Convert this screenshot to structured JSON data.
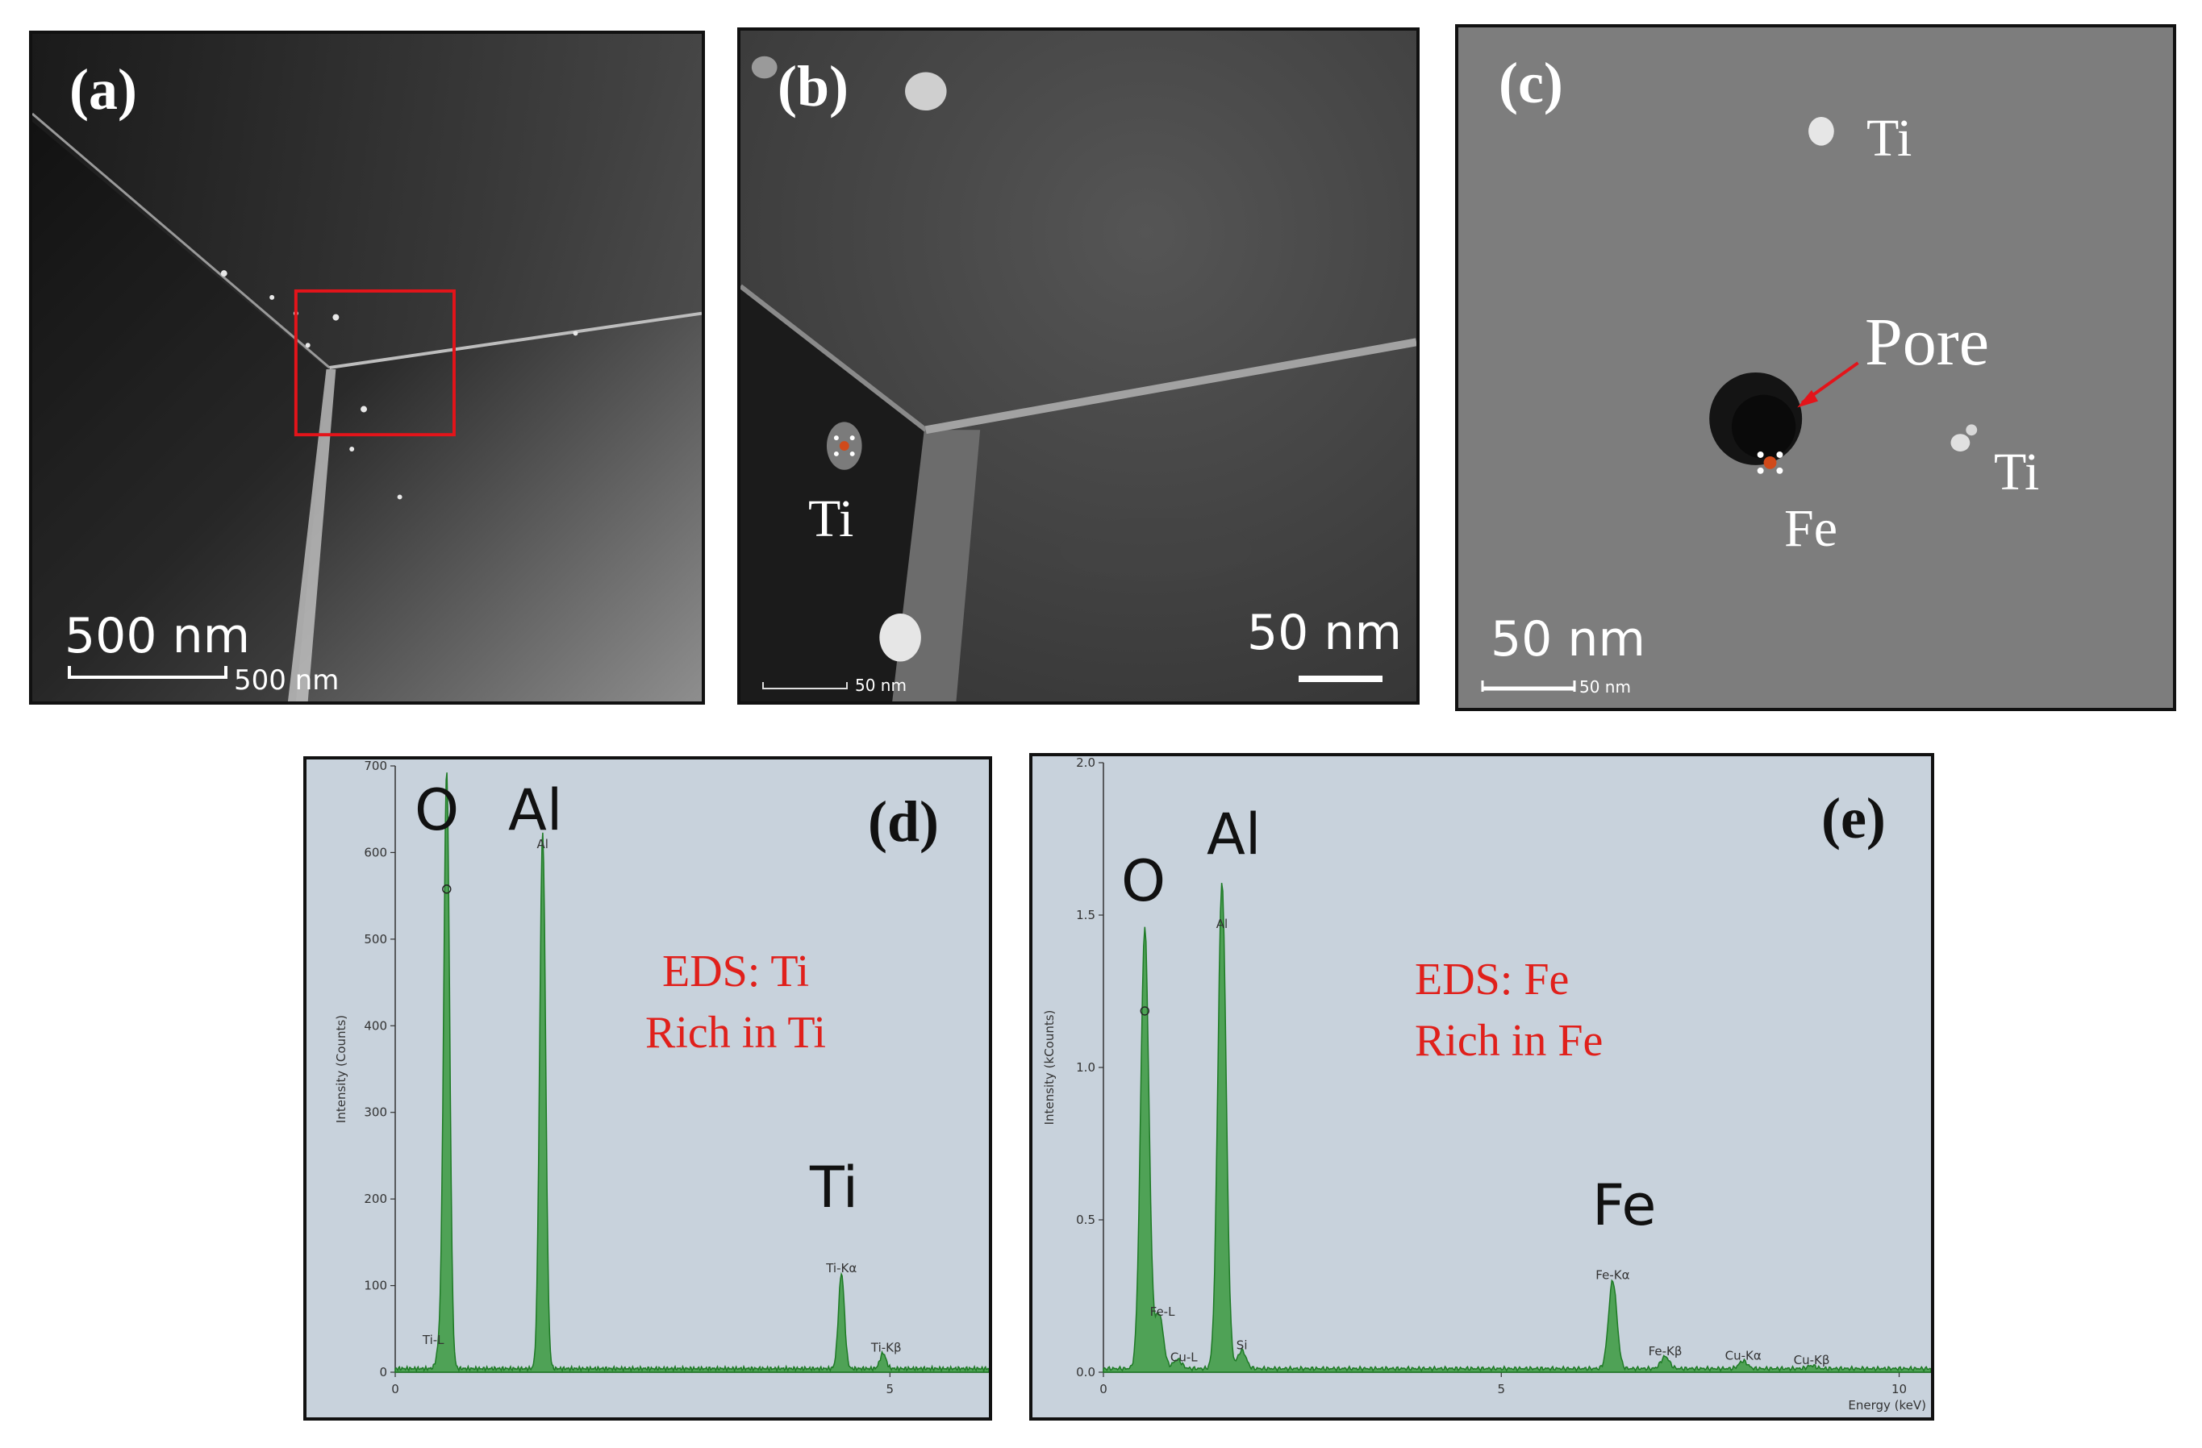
{
  "panels": {
    "a": {
      "label": "(a)",
      "scalebar_big": "500 nm",
      "scalebar_small": "500 nm"
    },
    "b": {
      "label": "(b)",
      "particle_label": "Ti",
      "scalebar_big": "50 nm",
      "scalebar_small": "50 nm"
    },
    "c": {
      "label": "(c)",
      "labels": {
        "ti_top": "Ti",
        "pore": "Pore",
        "ti_right": "Ti",
        "fe": "Fe"
      },
      "scalebar_big": "50 nm",
      "scalebar_small": "50 nm"
    },
    "d": {
      "label": "(d)",
      "note_line1": "EDS: Ti",
      "note_line2": "Rich in Ti",
      "peak_labels": {
        "O": "O",
        "Al": "Al",
        "Ti": "Ti"
      },
      "y_axis_label": "Intensity (Counts)",
      "small_labels": [
        "O",
        "Al",
        "Ti-Kα",
        "Ti-Kβ",
        "Ti-L"
      ]
    },
    "e": {
      "label": "(e)",
      "note_line1": "EDS: Fe",
      "note_line2": "Rich in Fe",
      "peak_labels": {
        "O": "O",
        "Al": "Al",
        "Fe": "Fe"
      },
      "y_axis_label": "Intensity (kCounts)",
      "x_axis_label": "Energy (keV)",
      "small_labels": [
        "O",
        "Al",
        "Fe-L",
        "Cu-L",
        "Si",
        "Fe-Kα",
        "Fe-Kβ",
        "Cu-Kα",
        "Cu-Kβ"
      ]
    }
  },
  "chart_data": [
    {
      "type": "line",
      "panel": "d",
      "x_ticks": [
        "0",
        "5"
      ],
      "y_ticks": [
        "0",
        "100",
        "200",
        "300",
        "400",
        "500",
        "600",
        "700"
      ],
      "ylabel": "Intensity (Counts)",
      "xlim": [
        0,
        6
      ],
      "ylim": [
        0,
        700
      ],
      "peaks": [
        {
          "label": "Ti-L",
          "x": 0.45,
          "y": 25
        },
        {
          "label": "O",
          "x": 0.52,
          "y": 690
        },
        {
          "label": "Al",
          "x": 1.49,
          "y": 620
        },
        {
          "label": "Ti-Kα",
          "x": 4.51,
          "y": 110
        },
        {
          "label": "Ti-Kβ",
          "x": 4.93,
          "y": 18
        }
      ]
    },
    {
      "type": "line",
      "panel": "e",
      "x_ticks": [
        "0",
        "5",
        "10"
      ],
      "y_ticks": [
        "0.0",
        "0.5",
        "1.0",
        "1.5",
        "2.0"
      ],
      "xlabel": "Energy (keV)",
      "ylabel": "Intensity (kCounts)",
      "xlim": [
        0,
        10.4
      ],
      "ylim": [
        0,
        2.0
      ],
      "peaks": [
        {
          "label": "O",
          "x": 0.52,
          "y": 1.45
        },
        {
          "label": "Fe-L",
          "x": 0.7,
          "y": 0.18
        },
        {
          "label": "Cu-L",
          "x": 0.93,
          "y": 0.03
        },
        {
          "label": "Al",
          "x": 1.49,
          "y": 1.6
        },
        {
          "label": "Si",
          "x": 1.74,
          "y": 0.06
        },
        {
          "label": "Fe-Kα",
          "x": 6.4,
          "y": 0.29
        },
        {
          "label": "Fe-Kβ",
          "x": 7.06,
          "y": 0.04
        },
        {
          "label": "Cu-Kα",
          "x": 8.04,
          "y": 0.025
        },
        {
          "label": "Cu-Kβ",
          "x": 8.9,
          "y": 0.01
        }
      ]
    }
  ]
}
